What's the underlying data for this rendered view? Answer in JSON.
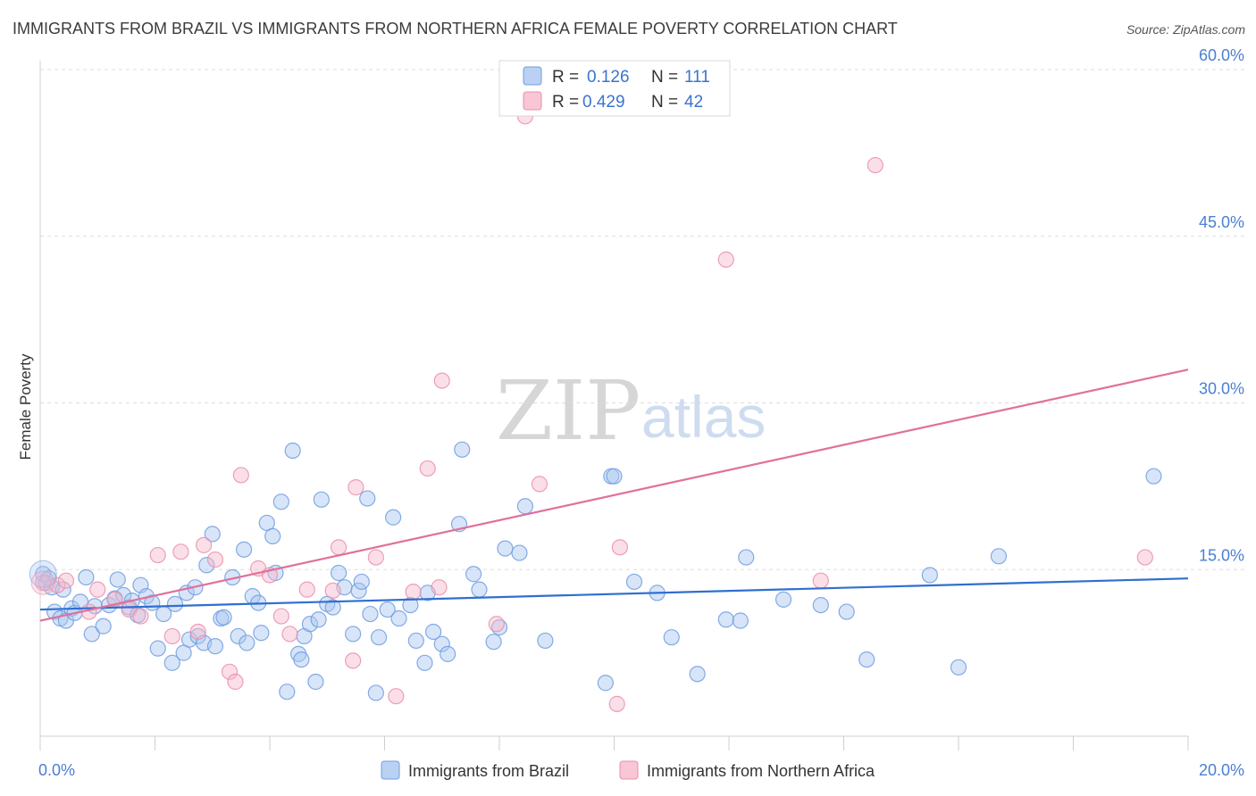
{
  "chart_data": {
    "type": "scatter",
    "title": "IMMIGRANTS FROM BRAZIL VS IMMIGRANTS FROM NORTHERN AFRICA FEMALE POVERTY CORRELATION CHART",
    "source": "Source: ZipAtlas.com",
    "ylabel": "Female Poverty",
    "xlim": [
      0,
      20
    ],
    "ylim": [
      0,
      60
    ],
    "x_ticks": [
      "0.0%",
      "20.0%"
    ],
    "y_ticks": [
      {
        "value": 15,
        "label": "15.0%"
      },
      {
        "value": 30,
        "label": "30.0%"
      },
      {
        "value": 45,
        "label": "45.0%"
      },
      {
        "value": 60,
        "label": "60.0%"
      }
    ],
    "grid": true,
    "watermark": {
      "zip": "ZIP",
      "atlas": "atlas"
    },
    "legend": {
      "placement": "top-center",
      "entries": [
        {
          "r_label": "R =",
          "r_value": "0.126",
          "n_label": "N =",
          "n_value": "111",
          "color": "#a9c6f0"
        },
        {
          "r_label": "R =",
          "r_value": "0.429",
          "n_label": "N =",
          "n_value": "42",
          "color": "#f6b8cb"
        }
      ]
    },
    "series": [
      {
        "name": "Immigrants from Brazil",
        "color": "#a9c6f0",
        "stroke": "#6f9ee0",
        "trend": {
          "x": [
            0,
            20
          ],
          "y": [
            11.4,
            14.2
          ],
          "color": "#2f6fd0"
        },
        "points": [
          [
            0.05,
            14.6
          ],
          [
            0.1,
            13.8
          ],
          [
            0.15,
            14.2
          ],
          [
            0.2,
            13.4
          ],
          [
            0.25,
            11.2
          ],
          [
            0.35,
            10.6
          ],
          [
            0.4,
            13.2
          ],
          [
            0.45,
            10.4
          ],
          [
            0.55,
            11.5
          ],
          [
            0.6,
            11.1
          ],
          [
            0.7,
            12.1
          ],
          [
            0.8,
            14.3
          ],
          [
            0.9,
            9.2
          ],
          [
            0.95,
            11.7
          ],
          [
            1.1,
            9.9
          ],
          [
            1.2,
            11.8
          ],
          [
            1.3,
            12.4
          ],
          [
            1.35,
            14.1
          ],
          [
            1.45,
            12.7
          ],
          [
            1.55,
            11.6
          ],
          [
            1.6,
            12.2
          ],
          [
            1.7,
            10.9
          ],
          [
            1.75,
            13.6
          ],
          [
            1.85,
            12.6
          ],
          [
            1.95,
            12.0
          ],
          [
            2.05,
            7.9
          ],
          [
            2.15,
            11.0
          ],
          [
            2.3,
            6.6
          ],
          [
            2.35,
            11.9
          ],
          [
            2.5,
            7.5
          ],
          [
            2.55,
            12.9
          ],
          [
            2.6,
            8.7
          ],
          [
            2.7,
            13.4
          ],
          [
            2.75,
            9.0
          ],
          [
            2.85,
            8.4
          ],
          [
            2.9,
            15.4
          ],
          [
            3.0,
            18.2
          ],
          [
            3.05,
            8.1
          ],
          [
            3.15,
            10.6
          ],
          [
            3.2,
            10.7
          ],
          [
            3.35,
            14.3
          ],
          [
            3.45,
            9.0
          ],
          [
            3.55,
            16.8
          ],
          [
            3.6,
            8.4
          ],
          [
            3.7,
            12.6
          ],
          [
            3.8,
            12.0
          ],
          [
            3.85,
            9.3
          ],
          [
            3.95,
            19.2
          ],
          [
            4.05,
            18.0
          ],
          [
            4.1,
            14.7
          ],
          [
            4.2,
            21.1
          ],
          [
            4.3,
            4.0
          ],
          [
            4.4,
            25.7
          ],
          [
            4.5,
            7.4
          ],
          [
            4.55,
            6.9
          ],
          [
            4.6,
            9.0
          ],
          [
            4.7,
            10.1
          ],
          [
            4.8,
            4.9
          ],
          [
            4.85,
            10.5
          ],
          [
            4.9,
            21.3
          ],
          [
            5.0,
            11.9
          ],
          [
            5.1,
            11.6
          ],
          [
            5.2,
            14.7
          ],
          [
            5.3,
            13.4
          ],
          [
            5.45,
            9.2
          ],
          [
            5.55,
            13.1
          ],
          [
            5.6,
            13.9
          ],
          [
            5.7,
            21.4
          ],
          [
            5.75,
            11.0
          ],
          [
            5.85,
            3.9
          ],
          [
            5.9,
            8.9
          ],
          [
            6.05,
            11.4
          ],
          [
            6.15,
            19.7
          ],
          [
            6.25,
            10.6
          ],
          [
            6.45,
            11.8
          ],
          [
            6.55,
            8.6
          ],
          [
            6.7,
            6.6
          ],
          [
            6.75,
            12.9
          ],
          [
            6.85,
            9.4
          ],
          [
            7.0,
            8.3
          ],
          [
            7.1,
            7.4
          ],
          [
            7.3,
            19.1
          ],
          [
            7.35,
            25.8
          ],
          [
            7.55,
            14.6
          ],
          [
            7.65,
            13.2
          ],
          [
            7.9,
            8.5
          ],
          [
            8.0,
            9.8
          ],
          [
            8.1,
            16.9
          ],
          [
            8.35,
            16.5
          ],
          [
            8.45,
            20.7
          ],
          [
            8.8,
            8.6
          ],
          [
            9.85,
            4.8
          ],
          [
            9.95,
            23.4
          ],
          [
            10.0,
            23.4
          ],
          [
            10.35,
            13.9
          ],
          [
            10.75,
            12.9
          ],
          [
            11.0,
            8.9
          ],
          [
            11.45,
            5.6
          ],
          [
            11.95,
            10.5
          ],
          [
            12.2,
            10.4
          ],
          [
            12.3,
            16.1
          ],
          [
            12.95,
            12.3
          ],
          [
            13.6,
            11.8
          ],
          [
            14.05,
            11.2
          ],
          [
            14.4,
            6.9
          ],
          [
            15.5,
            14.5
          ],
          [
            16.0,
            6.2
          ],
          [
            16.7,
            16.2
          ],
          [
            19.4,
            23.4
          ]
        ]
      },
      {
        "name": "Immigrants from Northern Africa",
        "color": "#f6b8cb",
        "stroke": "#ea8fab",
        "trend": {
          "x": [
            0,
            20
          ],
          "y": [
            10.4,
            33.0
          ],
          "color": "#e0709a"
        },
        "points": [
          [
            0.05,
            13.8
          ],
          [
            0.3,
            13.6
          ],
          [
            0.45,
            14.0
          ],
          [
            0.85,
            11.2
          ],
          [
            1.0,
            13.2
          ],
          [
            1.3,
            12.3
          ],
          [
            1.55,
            11.4
          ],
          [
            1.75,
            10.8
          ],
          [
            2.05,
            16.3
          ],
          [
            2.3,
            9.0
          ],
          [
            2.45,
            16.6
          ],
          [
            2.75,
            9.4
          ],
          [
            2.85,
            17.2
          ],
          [
            3.05,
            15.9
          ],
          [
            3.3,
            5.8
          ],
          [
            3.4,
            4.9
          ],
          [
            3.5,
            23.5
          ],
          [
            3.8,
            15.1
          ],
          [
            4.0,
            14.5
          ],
          [
            4.2,
            10.8
          ],
          [
            4.35,
            9.2
          ],
          [
            4.65,
            13.2
          ],
          [
            5.1,
            13.1
          ],
          [
            5.2,
            17.0
          ],
          [
            5.45,
            6.8
          ],
          [
            5.5,
            22.4
          ],
          [
            5.85,
            16.1
          ],
          [
            6.2,
            3.6
          ],
          [
            6.5,
            13.0
          ],
          [
            6.75,
            24.1
          ],
          [
            6.95,
            13.4
          ],
          [
            7.0,
            32.0
          ],
          [
            7.95,
            10.1
          ],
          [
            8.45,
            55.8
          ],
          [
            8.7,
            22.7
          ],
          [
            10.05,
            2.9
          ],
          [
            10.1,
            17.0
          ],
          [
            11.95,
            42.9
          ],
          [
            13.6,
            14.0
          ],
          [
            14.55,
            51.4
          ],
          [
            19.25,
            16.1
          ]
        ]
      }
    ]
  }
}
